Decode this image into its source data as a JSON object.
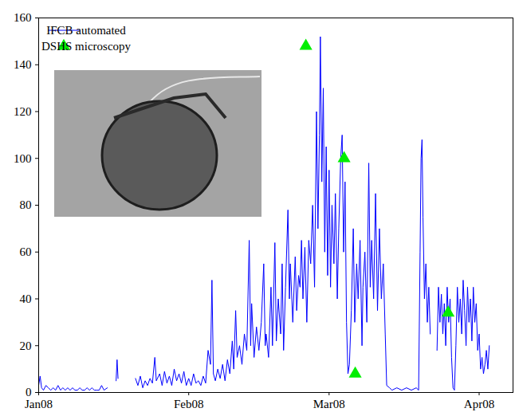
{
  "chart_data": {
    "type": "line",
    "series": [
      {
        "name": "IFCB automated",
        "type": "line",
        "color": "#0000ff",
        "x": [
          0,
          0.3,
          0.6,
          1,
          1.5,
          2,
          2.5,
          3,
          3.5,
          4,
          4.5,
          5,
          5.5,
          6,
          6.5,
          7,
          7.5,
          8,
          8.5,
          9,
          9.5,
          10,
          10.5,
          11,
          11.5,
          12,
          12.5,
          13,
          13.5,
          14.2,
          15,
          16,
          16.2,
          16.4,
          18,
          20,
          20.5,
          21,
          21.5,
          22,
          22.5,
          23,
          23.5,
          24,
          24.3,
          25,
          25.5,
          26,
          26.5,
          27,
          27.5,
          28,
          28.5,
          29,
          29.5,
          30,
          30.5,
          31,
          31.5,
          32,
          32.5,
          33,
          33.5,
          34,
          34.5,
          35,
          35.5,
          35.8,
          36.1,
          36.5,
          37,
          37.5,
          38,
          38.5,
          39,
          39.5,
          40,
          40.3,
          40.7,
          41,
          41.5,
          42,
          42.5,
          43,
          43.5,
          43.8,
          44,
          44.5,
          45,
          45.5,
          46,
          46.5,
          46.8,
          47,
          47.5,
          48,
          48.3,
          48.8,
          49.1,
          49.5,
          50,
          50.3,
          50.6,
          51,
          51.5,
          51.8,
          52,
          52.5,
          53,
          53.3,
          53.7,
          54,
          54.3,
          54.6,
          55,
          55.4,
          55.8,
          56.2,
          56.6,
          57,
          57.4,
          57.7,
          58,
          58.2,
          58.5,
          58.8,
          59.1,
          59.4,
          59.7,
          60,
          60.3,
          60.6,
          61,
          61.3,
          61.7,
          62,
          62.4,
          62.7,
          63,
          63.3,
          63.6,
          63.9,
          64.2,
          64.6,
          65,
          65.3,
          65.7,
          66,
          66.4,
          66.8,
          67,
          67.4,
          67.8,
          68.2,
          68.5,
          68.8,
          69.2,
          69.6,
          70,
          70.4,
          70.8,
          71.2,
          71.6,
          71.9,
          72.5,
          73,
          74,
          75,
          76,
          77,
          78,
          78.5,
          78.8,
          79,
          79.2,
          79.4,
          79.7,
          80,
          80.3,
          80.6,
          80.9,
          81.6,
          82.3,
          82.6,
          82.9,
          83.2,
          83.5,
          83.8,
          84.1,
          84.4,
          84.7,
          85,
          85.3,
          85.6,
          85.9,
          86.2,
          86.5,
          86.8,
          87.1,
          87.4,
          87.7,
          88,
          88.3,
          88.6,
          88.9,
          89.2,
          89.5,
          89.8,
          90.1,
          90.4,
          90.7,
          91,
          91.3,
          91.6,
          91.9,
          92.2,
          92.5,
          92.8,
          93.1
        ],
        "values": [
          3,
          7,
          2,
          1,
          3,
          2,
          1,
          2,
          1,
          3,
          1,
          2,
          1,
          2,
          1,
          2,
          1,
          1,
          2,
          1,
          1,
          2,
          1,
          2,
          1,
          1,
          1,
          3,
          1,
          2,
          null,
          5,
          14,
          6,
          null,
          6,
          3,
          7,
          2,
          5,
          3,
          6,
          4,
          15,
          5,
          8,
          3,
          9,
          4,
          7,
          3,
          10,
          5,
          8,
          4,
          9,
          3,
          6,
          3,
          8,
          4,
          5,
          3,
          7,
          4,
          18,
          12,
          48,
          8,
          5,
          10,
          6,
          12,
          5,
          14,
          8,
          22,
          10,
          35,
          15,
          20,
          12,
          25,
          18,
          65,
          20,
          38,
          15,
          28,
          18,
          30,
          55,
          20,
          25,
          15,
          45,
          20,
          64,
          22,
          40,
          25,
          55,
          18,
          45,
          78,
          40,
          55,
          30,
          58,
          35,
          50,
          45,
          65,
          40,
          62,
          30,
          65,
          55,
          80,
          45,
          120,
          70,
          110,
          152,
          90,
          130,
          60,
          105,
          50,
          95,
          45,
          80,
          55,
          85,
          40,
          70,
          100,
          110,
          60,
          90,
          30,
          8,
          12,
          35,
          70,
          30,
          55,
          40,
          65,
          20,
          45,
          60,
          30,
          98,
          45,
          65,
          40,
          85,
          35,
          70,
          40,
          55,
          25,
          3,
          2,
          1,
          2,
          1,
          2,
          1,
          2,
          1,
          60,
          100,
          108,
          75,
          40,
          55,
          30,
          45,
          25,
          null,
          18,
          45,
          30,
          42,
          25,
          38,
          20,
          45,
          30,
          40,
          15,
          2,
          1,
          20,
          45,
          30,
          40,
          25,
          48,
          35,
          20,
          45,
          30,
          40,
          22,
          45,
          30,
          38,
          18,
          25,
          10,
          15,
          8,
          12,
          18,
          10,
          20
        ]
      },
      {
        "name": "DSHS microscopy",
        "type": "scatter",
        "marker": "triangle",
        "color": "#00ee00",
        "x": [
          55.2,
          63.1,
          65.4,
          84.6
        ],
        "values": [
          148,
          100,
          8,
          34
        ]
      }
    ],
    "xlim": [
      0,
      98
    ],
    "xticks": [
      {
        "value": 0,
        "label": "Jan08"
      },
      {
        "value": 31,
        "label": "Feb08"
      },
      {
        "value": 60,
        "label": "Mar08"
      },
      {
        "value": 91,
        "label": "Apr08"
      }
    ],
    "ylim": [
      0,
      160
    ],
    "yticks": [
      0,
      20,
      40,
      60,
      80,
      100,
      120,
      140,
      160
    ],
    "grid": false,
    "legend": "upper left"
  }
}
